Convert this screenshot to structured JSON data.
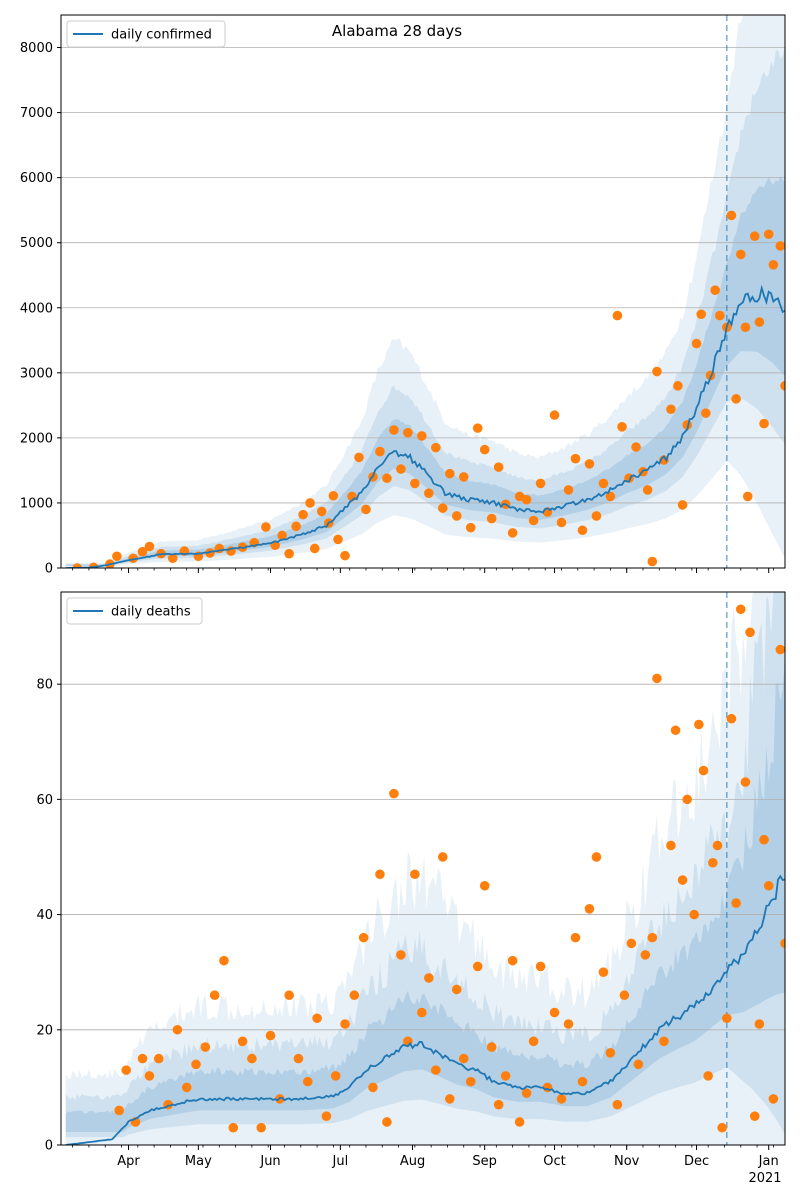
{
  "colors": {
    "line": "#1f77b4",
    "band": "#1f77b4",
    "points": "#ff7f0e",
    "grid": "#b0b0b0"
  },
  "chart_data": [
    {
      "type": "line",
      "title": "Alabama 28 days",
      "legend": {
        "label": "daily confirmed",
        "placement": "top-left"
      },
      "ylim": [
        0,
        8500
      ],
      "yticks": [
        0,
        1000,
        2000,
        3000,
        4000,
        5000,
        6000,
        7000,
        8000
      ],
      "grid": "horizontal",
      "forecast_start": "2020-12-14",
      "line_points": [
        [
          "2020-03-05",
          0
        ],
        [
          "2020-03-15",
          5
        ],
        [
          "2020-03-22",
          40
        ],
        [
          "2020-04-01",
          120
        ],
        [
          "2020-04-15",
          210
        ],
        [
          "2020-05-01",
          220
        ],
        [
          "2020-05-15",
          290
        ],
        [
          "2020-06-01",
          380
        ],
        [
          "2020-06-15",
          520
        ],
        [
          "2020-06-25",
          650
        ],
        [
          "2020-07-01",
          850
        ],
        [
          "2020-07-10",
          1150
        ],
        [
          "2020-07-17",
          1550
        ],
        [
          "2020-07-24",
          1800
        ],
        [
          "2020-07-31",
          1700
        ],
        [
          "2020-08-07",
          1450
        ],
        [
          "2020-08-15",
          1150
        ],
        [
          "2020-08-25",
          1050
        ],
        [
          "2020-09-05",
          1000
        ],
        [
          "2020-09-15",
          900
        ],
        [
          "2020-09-25",
          870
        ],
        [
          "2020-10-05",
          950
        ],
        [
          "2020-10-15",
          1050
        ],
        [
          "2020-10-25",
          1200
        ],
        [
          "2020-11-01",
          1350
        ],
        [
          "2020-11-10",
          1500
        ],
        [
          "2020-11-18",
          1700
        ],
        [
          "2020-11-25",
          2000
        ],
        [
          "2020-12-01",
          2450
        ],
        [
          "2020-12-07",
          3000
        ],
        [
          "2020-12-14",
          3650
        ],
        [
          "2020-12-20",
          4050
        ],
        [
          "2020-12-27",
          4200
        ],
        [
          "2021-01-02",
          4150
        ],
        [
          "2021-01-08",
          4000
        ]
      ],
      "points": [
        [
          "2020-03-10",
          0
        ],
        [
          "2020-03-17",
          10
        ],
        [
          "2020-03-24",
          60
        ],
        [
          "2020-03-27",
          180
        ],
        [
          "2020-04-03",
          150
        ],
        [
          "2020-04-07",
          250
        ],
        [
          "2020-04-10",
          330
        ],
        [
          "2020-04-15",
          220
        ],
        [
          "2020-04-20",
          150
        ],
        [
          "2020-04-25",
          260
        ],
        [
          "2020-05-01",
          180
        ],
        [
          "2020-05-06",
          230
        ],
        [
          "2020-05-10",
          300
        ],
        [
          "2020-05-15",
          260
        ],
        [
          "2020-05-20",
          320
        ],
        [
          "2020-05-25",
          390
        ],
        [
          "2020-05-30",
          630
        ],
        [
          "2020-06-03",
          350
        ],
        [
          "2020-06-06",
          500
        ],
        [
          "2020-06-09",
          220
        ],
        [
          "2020-06-12",
          640
        ],
        [
          "2020-06-15",
          820
        ],
        [
          "2020-06-18",
          1000
        ],
        [
          "2020-06-20",
          300
        ],
        [
          "2020-06-23",
          870
        ],
        [
          "2020-06-26",
          690
        ],
        [
          "2020-06-28",
          1110
        ],
        [
          "2020-06-30",
          440
        ],
        [
          "2020-07-03",
          190
        ],
        [
          "2020-07-06",
          1100
        ],
        [
          "2020-07-09",
          1700
        ],
        [
          "2020-07-12",
          900
        ],
        [
          "2020-07-15",
          1400
        ],
        [
          "2020-07-18",
          1790
        ],
        [
          "2020-07-21",
          1380
        ],
        [
          "2020-07-24",
          2120
        ],
        [
          "2020-07-27",
          1520
        ],
        [
          "2020-07-30",
          2080
        ],
        [
          "2020-08-02",
          1300
        ],
        [
          "2020-08-05",
          2030
        ],
        [
          "2020-08-08",
          1150
        ],
        [
          "2020-08-11",
          1850
        ],
        [
          "2020-08-14",
          920
        ],
        [
          "2020-08-17",
          1450
        ],
        [
          "2020-08-20",
          800
        ],
        [
          "2020-08-23",
          1400
        ],
        [
          "2020-08-26",
          620
        ],
        [
          "2020-08-29",
          2150
        ],
        [
          "2020-09-01",
          1820
        ],
        [
          "2020-09-04",
          760
        ],
        [
          "2020-09-07",
          1550
        ],
        [
          "2020-09-10",
          980
        ],
        [
          "2020-09-13",
          540
        ],
        [
          "2020-09-16",
          1100
        ],
        [
          "2020-09-19",
          1050
        ],
        [
          "2020-09-22",
          730
        ],
        [
          "2020-09-25",
          1300
        ],
        [
          "2020-09-28",
          860
        ],
        [
          "2020-10-01",
          2350
        ],
        [
          "2020-10-04",
          700
        ],
        [
          "2020-10-07",
          1200
        ],
        [
          "2020-10-10",
          1680
        ],
        [
          "2020-10-13",
          580
        ],
        [
          "2020-10-16",
          1600
        ],
        [
          "2020-10-19",
          800
        ],
        [
          "2020-10-22",
          1300
        ],
        [
          "2020-10-25",
          1100
        ],
        [
          "2020-10-28",
          3880
        ],
        [
          "2020-10-30",
          2170
        ],
        [
          "2020-11-02",
          1380
        ],
        [
          "2020-11-05",
          1860
        ],
        [
          "2020-11-08",
          1480
        ],
        [
          "2020-11-10",
          1200
        ],
        [
          "2020-11-12",
          100
        ],
        [
          "2020-11-14",
          3020
        ],
        [
          "2020-11-17",
          1660
        ],
        [
          "2020-11-20",
          2440
        ],
        [
          "2020-11-23",
          2800
        ],
        [
          "2020-11-25",
          970
        ],
        [
          "2020-11-27",
          2200
        ],
        [
          "2020-12-01",
          3450
        ],
        [
          "2020-12-03",
          3900
        ],
        [
          "2020-12-05",
          2380
        ],
        [
          "2020-12-07",
          2960
        ],
        [
          "2020-12-09",
          4270
        ],
        [
          "2020-12-11",
          3880
        ],
        [
          "2020-12-14",
          3700
        ],
        [
          "2020-12-16",
          5420
        ],
        [
          "2020-12-18",
          2600
        ],
        [
          "2020-12-20",
          4820
        ],
        [
          "2020-12-22",
          3700
        ],
        [
          "2020-12-23",
          1100
        ],
        [
          "2020-12-26",
          5100
        ],
        [
          "2020-12-28",
          3780
        ],
        [
          "2020-12-30",
          2220
        ],
        [
          "2021-01-01",
          5130
        ],
        [
          "2021-01-03",
          4660
        ],
        [
          "2021-01-06",
          4950
        ],
        [
          "2021-01-08",
          2800
        ]
      ]
    },
    {
      "type": "line",
      "title": "",
      "legend": {
        "label": "daily deaths",
        "placement": "top-left"
      },
      "ylim": [
        0,
        96
      ],
      "yticks": [
        0,
        20,
        40,
        60,
        80
      ],
      "grid": "horizontal",
      "forecast_start": "2020-12-14",
      "line_points": [
        [
          "2020-03-05",
          0
        ],
        [
          "2020-03-25",
          1
        ],
        [
          "2020-04-01",
          4
        ],
        [
          "2020-04-10",
          6
        ],
        [
          "2020-04-20",
          7
        ],
        [
          "2020-05-01",
          8
        ],
        [
          "2020-05-15",
          8
        ],
        [
          "2020-06-01",
          8
        ],
        [
          "2020-06-15",
          8
        ],
        [
          "2020-06-28",
          8.5
        ],
        [
          "2020-07-05",
          10
        ],
        [
          "2020-07-12",
          13
        ],
        [
          "2020-07-20",
          15
        ],
        [
          "2020-07-28",
          17
        ],
        [
          "2020-08-05",
          17.5
        ],
        [
          "2020-08-12",
          16
        ],
        [
          "2020-08-20",
          14
        ],
        [
          "2020-08-28",
          13
        ],
        [
          "2020-09-05",
          11
        ],
        [
          "2020-09-15",
          10
        ],
        [
          "2020-09-25",
          10
        ],
        [
          "2020-10-05",
          9
        ],
        [
          "2020-10-15",
          9
        ],
        [
          "2020-10-25",
          11
        ],
        [
          "2020-11-01",
          14
        ],
        [
          "2020-11-08",
          17
        ],
        [
          "2020-11-15",
          20
        ],
        [
          "2020-11-22",
          22
        ],
        [
          "2020-11-30",
          24
        ],
        [
          "2020-12-07",
          27
        ],
        [
          "2020-12-14",
          30
        ],
        [
          "2020-12-21",
          33
        ],
        [
          "2020-12-28",
          38
        ],
        [
          "2021-01-04",
          44
        ],
        [
          "2021-01-08",
          47
        ]
      ],
      "points": [
        [
          "2020-03-28",
          6
        ],
        [
          "2020-03-31",
          13
        ],
        [
          "2020-04-04",
          4
        ],
        [
          "2020-04-07",
          15
        ],
        [
          "2020-04-10",
          12
        ],
        [
          "2020-04-14",
          15
        ],
        [
          "2020-04-18",
          7
        ],
        [
          "2020-04-22",
          20
        ],
        [
          "2020-04-26",
          10
        ],
        [
          "2020-04-30",
          14
        ],
        [
          "2020-05-04",
          17
        ],
        [
          "2020-05-08",
          26
        ],
        [
          "2020-05-12",
          32
        ],
        [
          "2020-05-16",
          3
        ],
        [
          "2020-05-20",
          18
        ],
        [
          "2020-05-24",
          15
        ],
        [
          "2020-05-28",
          3
        ],
        [
          "2020-06-01",
          19
        ],
        [
          "2020-06-05",
          8
        ],
        [
          "2020-06-09",
          26
        ],
        [
          "2020-06-13",
          15
        ],
        [
          "2020-06-17",
          11
        ],
        [
          "2020-06-21",
          22
        ],
        [
          "2020-06-25",
          5
        ],
        [
          "2020-06-29",
          12
        ],
        [
          "2020-07-03",
          21
        ],
        [
          "2020-07-07",
          26
        ],
        [
          "2020-07-11",
          36
        ],
        [
          "2020-07-15",
          10
        ],
        [
          "2020-07-18",
          47
        ],
        [
          "2020-07-21",
          4
        ],
        [
          "2020-07-24",
          61
        ],
        [
          "2020-07-27",
          33
        ],
        [
          "2020-07-30",
          18
        ],
        [
          "2020-08-02",
          47
        ],
        [
          "2020-08-05",
          23
        ],
        [
          "2020-08-08",
          29
        ],
        [
          "2020-08-11",
          13
        ],
        [
          "2020-08-14",
          50
        ],
        [
          "2020-08-17",
          8
        ],
        [
          "2020-08-20",
          27
        ],
        [
          "2020-08-23",
          15
        ],
        [
          "2020-08-26",
          11
        ],
        [
          "2020-08-29",
          31
        ],
        [
          "2020-09-01",
          45
        ],
        [
          "2020-09-04",
          17
        ],
        [
          "2020-09-07",
          7
        ],
        [
          "2020-09-10",
          12
        ],
        [
          "2020-09-13",
          32
        ],
        [
          "2020-09-16",
          4
        ],
        [
          "2020-09-19",
          9
        ],
        [
          "2020-09-22",
          18
        ],
        [
          "2020-09-25",
          31
        ],
        [
          "2020-09-28",
          10
        ],
        [
          "2020-10-01",
          23
        ],
        [
          "2020-10-04",
          8
        ],
        [
          "2020-10-07",
          21
        ],
        [
          "2020-10-10",
          36
        ],
        [
          "2020-10-13",
          11
        ],
        [
          "2020-10-16",
          41
        ],
        [
          "2020-10-19",
          50
        ],
        [
          "2020-10-22",
          30
        ],
        [
          "2020-10-25",
          16
        ],
        [
          "2020-10-28",
          7
        ],
        [
          "2020-10-31",
          26
        ],
        [
          "2020-11-03",
          35
        ],
        [
          "2020-11-06",
          14
        ],
        [
          "2020-11-09",
          33
        ],
        [
          "2020-11-12",
          36
        ],
        [
          "2020-11-14",
          81
        ],
        [
          "2020-11-17",
          18
        ],
        [
          "2020-11-20",
          52
        ],
        [
          "2020-11-22",
          72
        ],
        [
          "2020-11-25",
          46
        ],
        [
          "2020-11-27",
          60
        ],
        [
          "2020-11-30",
          40
        ],
        [
          "2020-12-02",
          73
        ],
        [
          "2020-12-04",
          65
        ],
        [
          "2020-12-06",
          12
        ],
        [
          "2020-12-08",
          49
        ],
        [
          "2020-12-10",
          52
        ],
        [
          "2020-12-12",
          3
        ],
        [
          "2020-12-14",
          22
        ],
        [
          "2020-12-16",
          74
        ],
        [
          "2020-12-18",
          42
        ],
        [
          "2020-12-20",
          93
        ],
        [
          "2020-12-22",
          63
        ],
        [
          "2020-12-24",
          89
        ],
        [
          "2020-12-26",
          5
        ],
        [
          "2020-12-28",
          21
        ],
        [
          "2020-12-30",
          53
        ],
        [
          "2021-01-01",
          45
        ],
        [
          "2021-01-03",
          8
        ],
        [
          "2021-01-06",
          86
        ],
        [
          "2021-01-08",
          35
        ]
      ]
    }
  ],
  "x_axis": {
    "range": [
      "2020-03-03",
      "2021-01-08"
    ],
    "ticks": [
      {
        "date": "2020-04-01",
        "label": "Apr"
      },
      {
        "date": "2020-05-01",
        "label": "May"
      },
      {
        "date": "2020-06-01",
        "label": "Jun"
      },
      {
        "date": "2020-07-01",
        "label": "Jul"
      },
      {
        "date": "2020-08-01",
        "label": "Aug"
      },
      {
        "date": "2020-09-01",
        "label": "Sep"
      },
      {
        "date": "2020-10-01",
        "label": "Oct"
      },
      {
        "date": "2020-11-01",
        "label": "Nov"
      },
      {
        "date": "2020-12-01",
        "label": "Dec"
      },
      {
        "date": "2021-01-01",
        "label": "Jan"
      }
    ],
    "year_label": "2021"
  }
}
